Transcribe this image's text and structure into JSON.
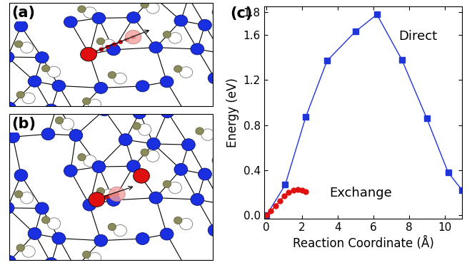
{
  "panel_labels": [
    "(a)",
    "(b)",
    "(c)"
  ],
  "chart_data": {
    "type": "line",
    "x_label": "Reaction Coordinate (Å)",
    "y_label": "Energy (eV)",
    "xlim": [
      -0.15,
      11.0
    ],
    "xticks": [
      0,
      2,
      4,
      6,
      8,
      10
    ],
    "ylim": [
      -0.03,
      1.85
    ],
    "yticks": [
      {
        "value": 0,
        "label": "0.0"
      },
      0.4,
      0.8,
      1.2,
      1.6,
      1.8
    ],
    "series": [
      {
        "name": "Direct",
        "color": "#1f35d8",
        "marker": "square",
        "line_style": "solid",
        "x": [
          0,
          1.05,
          2.2,
          3.4,
          5.0,
          6.2,
          7.6,
          9.0,
          10.2,
          11.0
        ],
        "values": [
          0,
          0.27,
          0.87,
          1.37,
          1.63,
          1.78,
          1.38,
          0.86,
          0.38,
          0.22
        ]
      },
      {
        "name": "Exchange",
        "color": "#e01010",
        "marker": "circle",
        "line_style": "solid",
        "x": [
          0,
          0.25,
          0.5,
          0.75,
          1.0,
          1.25,
          1.5,
          1.75,
          2.0,
          2.2
        ],
        "values": [
          0,
          0.04,
          0.08,
          0.13,
          0.17,
          0.2,
          0.22,
          0.23,
          0.22,
          0.21
        ]
      }
    ]
  }
}
